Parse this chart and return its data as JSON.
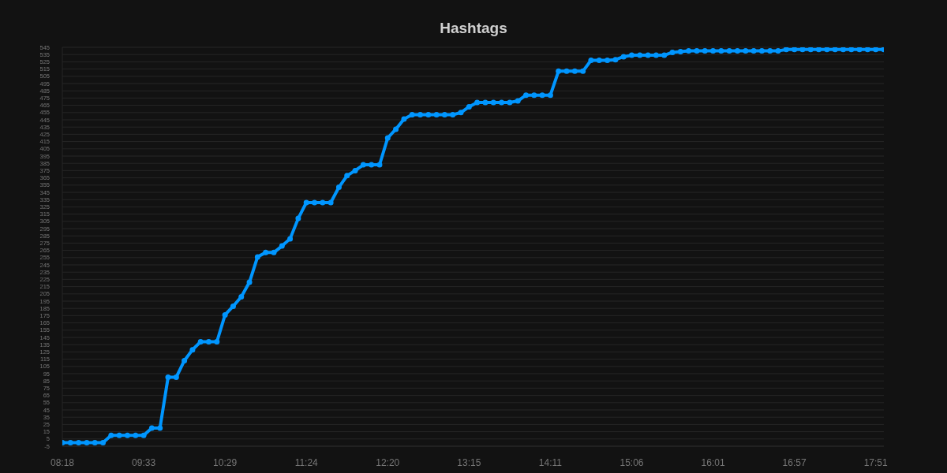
{
  "chart_data": {
    "type": "line",
    "title": "Hashtags",
    "categories": [
      "08:18",
      null,
      null,
      null,
      null,
      null,
      null,
      null,
      null,
      null,
      "09:33",
      null,
      null,
      null,
      null,
      null,
      null,
      null,
      null,
      null,
      "10:29",
      null,
      null,
      null,
      null,
      null,
      null,
      null,
      null,
      null,
      "11:24",
      null,
      null,
      null,
      null,
      null,
      null,
      null,
      null,
      null,
      "12:20",
      null,
      null,
      null,
      null,
      null,
      null,
      null,
      null,
      null,
      "13:15",
      null,
      null,
      null,
      null,
      null,
      null,
      null,
      null,
      null,
      "14:11",
      null,
      null,
      null,
      null,
      null,
      null,
      null,
      null,
      null,
      "15:06",
      null,
      null,
      null,
      null,
      null,
      null,
      null,
      null,
      null,
      "16:01",
      null,
      null,
      null,
      null,
      null,
      null,
      null,
      null,
      null,
      "16:57",
      null,
      null,
      null,
      null,
      null,
      null,
      null,
      null,
      null,
      "17:51",
      null
    ],
    "values": [
      0,
      0,
      0,
      0,
      0,
      0,
      10,
      10,
      10,
      10,
      10,
      20,
      20,
      90,
      90,
      113,
      128,
      139,
      139,
      139,
      176,
      188,
      201,
      221,
      256,
      262,
      262,
      271,
      281,
      309,
      331,
      331,
      331,
      331,
      352,
      368,
      375,
      383,
      383,
      383,
      420,
      432,
      446,
      452,
      452,
      452,
      452,
      452,
      452,
      455,
      463,
      469,
      469,
      469,
      469,
      469,
      471,
      479,
      479,
      479,
      479,
      512,
      512,
      512,
      512,
      527,
      527,
      527,
      528,
      532,
      534,
      534,
      534,
      534,
      534,
      538,
      539,
      540,
      540,
      540,
      540,
      540,
      540,
      540,
      540,
      540,
      540,
      540,
      540,
      542,
      542,
      542,
      542,
      542,
      542,
      542,
      542,
      542,
      542,
      542,
      542,
      542
    ],
    "color": "#0096ff",
    "ylim": [
      -5,
      545
    ],
    "yticks": [
      -5,
      5,
      15,
      25,
      35,
      45,
      55,
      65,
      75,
      85,
      95,
      105,
      115,
      125,
      135,
      145,
      155,
      165,
      175,
      185,
      195,
      205,
      215,
      225,
      235,
      245,
      255,
      265,
      275,
      285,
      295,
      305,
      315,
      325,
      335,
      345,
      355,
      365,
      375,
      385,
      395,
      405,
      415,
      425,
      435,
      445,
      455,
      465,
      475,
      485,
      495,
      505,
      515,
      525,
      535,
      545
    ],
    "grid": "y",
    "marker": "circle",
    "line_style": "solid"
  }
}
